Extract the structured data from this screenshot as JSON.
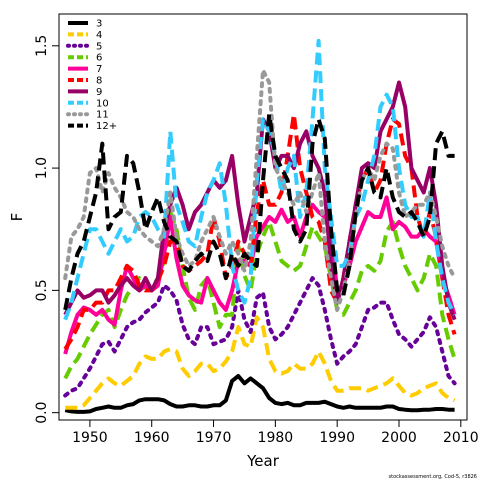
{
  "chart_data": {
    "type": "line",
    "xlabel": "Year",
    "ylabel": "F",
    "xlim": [
      1945,
      2011
    ],
    "ylim": [
      -0.03,
      1.63
    ],
    "x_ticks": [
      1950,
      1960,
      1970,
      1980,
      1990,
      2000,
      2010
    ],
    "y_ticks": [
      0.0,
      0.5,
      1.0,
      1.5
    ],
    "y_tick_labels": [
      "0.0",
      "0.5",
      "1.0",
      "1.5"
    ],
    "legend_position": "top-left",
    "x": [
      1946,
      1947,
      1948,
      1949,
      1950,
      1951,
      1952,
      1953,
      1954,
      1955,
      1956,
      1957,
      1958,
      1959,
      1960,
      1961,
      1962,
      1963,
      1964,
      1965,
      1966,
      1967,
      1968,
      1969,
      1970,
      1971,
      1972,
      1973,
      1974,
      1975,
      1976,
      1977,
      1978,
      1979,
      1980,
      1981,
      1982,
      1983,
      1984,
      1985,
      1986,
      1987,
      1988,
      1989,
      1990,
      1991,
      1992,
      1993,
      1994,
      1995,
      1996,
      1997,
      1998,
      1999,
      2000,
      2001,
      2002,
      2003,
      2004,
      2005,
      2006,
      2007,
      2008,
      2009
    ],
    "series": [
      {
        "name": "3",
        "color": "#000000",
        "dash": "solid",
        "values": [
          0.01,
          0.005,
          0.003,
          0.003,
          0.005,
          0.015,
          0.02,
          0.025,
          0.02,
          0.02,
          0.03,
          0.035,
          0.05,
          0.055,
          0.055,
          0.055,
          0.05,
          0.035,
          0.025,
          0.025,
          0.03,
          0.03,
          0.025,
          0.025,
          0.03,
          0.03,
          0.05,
          0.13,
          0.15,
          0.12,
          0.14,
          0.12,
          0.1,
          0.06,
          0.04,
          0.035,
          0.04,
          0.03,
          0.03,
          0.04,
          0.04,
          0.04,
          0.045,
          0.035,
          0.025,
          0.02,
          0.025,
          0.02,
          0.02,
          0.02,
          0.02,
          0.02,
          0.025,
          0.025,
          0.015,
          0.012,
          0.01,
          0.01,
          0.012,
          0.012,
          0.015,
          0.015,
          0.012,
          0.012
        ]
      },
      {
        "name": "4",
        "color": "#FFCC00",
        "dash": "dash",
        "values": [
          0.02,
          0.02,
          0.02,
          0.03,
          0.06,
          0.09,
          0.12,
          0.14,
          0.12,
          0.11,
          0.13,
          0.15,
          0.2,
          0.23,
          0.22,
          0.22,
          0.25,
          0.26,
          0.25,
          0.18,
          0.15,
          0.17,
          0.2,
          0.2,
          0.17,
          0.18,
          0.21,
          0.25,
          0.35,
          0.28,
          0.27,
          0.39,
          0.35,
          0.22,
          0.17,
          0.16,
          0.17,
          0.2,
          0.18,
          0.18,
          0.2,
          0.25,
          0.2,
          0.13,
          0.09,
          0.09,
          0.1,
          0.1,
          0.1,
          0.09,
          0.1,
          0.11,
          0.12,
          0.14,
          0.11,
          0.08,
          0.07,
          0.08,
          0.1,
          0.11,
          0.12,
          0.08,
          0.06,
          0.05
        ]
      },
      {
        "name": "5",
        "color": "#660099",
        "dash": "dot",
        "values": [
          0.07,
          0.09,
          0.1,
          0.14,
          0.18,
          0.23,
          0.28,
          0.29,
          0.25,
          0.3,
          0.35,
          0.37,
          0.38,
          0.41,
          0.43,
          0.45,
          0.52,
          0.5,
          0.46,
          0.36,
          0.3,
          0.28,
          0.35,
          0.35,
          0.28,
          0.29,
          0.3,
          0.35,
          0.5,
          0.38,
          0.33,
          0.47,
          0.49,
          0.35,
          0.3,
          0.32,
          0.35,
          0.4,
          0.45,
          0.5,
          0.55,
          0.52,
          0.42,
          0.3,
          0.2,
          0.23,
          0.25,
          0.28,
          0.35,
          0.42,
          0.43,
          0.45,
          0.45,
          0.38,
          0.32,
          0.3,
          0.27,
          0.3,
          0.33,
          0.39,
          0.35,
          0.25,
          0.15,
          0.12
        ]
      },
      {
        "name": "6",
        "color": "#66CC00",
        "dash": "dash",
        "values": [
          0.14,
          0.19,
          0.22,
          0.27,
          0.32,
          0.36,
          0.4,
          0.42,
          0.35,
          0.42,
          0.48,
          0.52,
          0.55,
          0.51,
          0.51,
          0.55,
          0.62,
          0.82,
          0.75,
          0.6,
          0.47,
          0.42,
          0.52,
          0.55,
          0.45,
          0.35,
          0.4,
          0.4,
          0.68,
          0.56,
          0.5,
          0.65,
          0.72,
          0.78,
          0.7,
          0.62,
          0.6,
          0.58,
          0.6,
          0.68,
          0.76,
          0.72,
          0.68,
          0.55,
          0.42,
          0.4,
          0.45,
          0.5,
          0.58,
          0.6,
          0.58,
          0.62,
          0.74,
          0.78,
          0.68,
          0.6,
          0.55,
          0.5,
          0.55,
          0.65,
          0.6,
          0.4,
          0.3,
          0.22
        ]
      },
      {
        "name": "7",
        "color": "#FF0099",
        "dash": "solid",
        "values": [
          0.24,
          0.33,
          0.4,
          0.43,
          0.42,
          0.4,
          0.42,
          0.38,
          0.36,
          0.5,
          0.6,
          0.55,
          0.5,
          0.52,
          0.5,
          0.52,
          0.65,
          0.8,
          0.63,
          0.52,
          0.48,
          0.46,
          0.45,
          0.55,
          0.5,
          0.45,
          0.42,
          0.5,
          0.62,
          0.62,
          0.6,
          0.72,
          0.76,
          0.8,
          0.78,
          0.83,
          0.78,
          0.8,
          0.72,
          0.8,
          0.85,
          0.82,
          0.8,
          0.72,
          0.5,
          0.52,
          0.6,
          0.7,
          0.76,
          0.82,
          0.8,
          0.8,
          0.88,
          0.75,
          0.78,
          0.76,
          0.72,
          0.72,
          0.75,
          0.72,
          0.7,
          0.55,
          0.48,
          0.4
        ]
      },
      {
        "name": "8",
        "color": "#FF0000",
        "dash": "dash",
        "values": [
          0.26,
          0.3,
          0.35,
          0.42,
          0.42,
          0.45,
          0.45,
          0.5,
          0.5,
          0.55,
          0.6,
          0.58,
          0.52,
          0.5,
          0.5,
          0.54,
          0.6,
          0.7,
          0.7,
          0.6,
          0.58,
          0.6,
          0.62,
          0.65,
          0.8,
          0.7,
          0.55,
          0.6,
          0.7,
          0.65,
          0.6,
          0.82,
          0.95,
          0.85,
          0.85,
          0.9,
          1.05,
          1.22,
          1.0,
          0.9,
          0.8,
          0.78,
          0.7,
          0.5,
          0.45,
          0.55,
          0.7,
          0.85,
          0.95,
          1.0,
          0.9,
          0.95,
          1.1,
          1.2,
          1.18,
          1.05,
          1.0,
          0.8,
          0.72,
          0.82,
          0.72,
          0.55,
          0.4,
          0.32
        ]
      },
      {
        "name": "9",
        "color": "#990066",
        "dash": "solid",
        "values": [
          0.4,
          0.45,
          0.5,
          0.47,
          0.48,
          0.5,
          0.5,
          0.45,
          0.48,
          0.52,
          0.55,
          0.52,
          0.5,
          0.55,
          0.5,
          0.55,
          0.75,
          0.85,
          0.92,
          0.85,
          0.75,
          0.82,
          0.85,
          0.9,
          0.95,
          0.92,
          0.95,
          1.05,
          0.85,
          0.7,
          0.8,
          0.9,
          1.2,
          1.15,
          1.0,
          1.05,
          1.05,
          1.0,
          1.1,
          1.15,
          1.05,
          1.0,
          0.9,
          0.6,
          0.45,
          0.55,
          0.7,
          0.85,
          1.0,
          1.02,
          1.0,
          1.15,
          1.2,
          1.25,
          1.35,
          1.25,
          1.0,
          0.95,
          0.9,
          1.0,
          0.85,
          0.6,
          0.45,
          0.38
        ]
      },
      {
        "name": "10",
        "color": "#33CCFF",
        "dash": "dash",
        "values": [
          0.38,
          0.45,
          0.55,
          0.65,
          0.75,
          0.75,
          0.7,
          0.65,
          0.7,
          0.75,
          0.7,
          0.72,
          0.8,
          0.82,
          0.8,
          0.75,
          0.72,
          1.15,
          0.85,
          0.78,
          0.7,
          0.68,
          0.8,
          0.9,
          0.95,
          1.02,
          0.85,
          0.6,
          0.5,
          0.45,
          0.55,
          0.95,
          1.2,
          1.15,
          1.05,
          0.9,
          1.0,
          1.05,
          0.8,
          0.9,
          1.2,
          1.52,
          1.0,
          0.8,
          0.6,
          0.6,
          0.65,
          0.8,
          0.85,
          0.95,
          1.05,
          1.25,
          1.3,
          1.25,
          1.0,
          0.85,
          0.8,
          0.8,
          0.72,
          0.9,
          0.7,
          0.55,
          0.45,
          0.4
        ]
      },
      {
        "name": "11",
        "color": "#999999",
        "dash": "dot",
        "values": [
          0.55,
          0.72,
          0.75,
          0.8,
          0.98,
          1.0,
          0.9,
          0.98,
          0.92,
          0.88,
          0.82,
          0.8,
          0.75,
          0.72,
          0.7,
          0.68,
          0.75,
          0.9,
          0.72,
          0.65,
          0.6,
          0.62,
          0.7,
          0.75,
          0.8,
          0.72,
          0.65,
          0.7,
          0.65,
          0.58,
          0.7,
          1.05,
          1.4,
          1.35,
          1.0,
          0.95,
          0.9,
          0.85,
          0.9,
          0.82,
          0.9,
          0.98,
          0.7,
          0.55,
          0.42,
          0.5,
          0.62,
          0.8,
          0.95,
          1.0,
          0.95,
          1.05,
          1.1,
          1.08,
          0.9,
          0.8,
          0.82,
          0.85,
          0.85,
          0.9,
          0.8,
          0.68,
          0.6,
          0.55
        ]
      },
      {
        "name": "12+",
        "color": "#000000",
        "dash": "dash",
        "values": [
          0.42,
          0.55,
          0.65,
          0.7,
          0.8,
          0.9,
          1.1,
          0.75,
          0.8,
          0.82,
          1.05,
          1.02,
          0.9,
          0.75,
          0.82,
          0.88,
          0.78,
          0.72,
          0.7,
          0.6,
          0.58,
          0.62,
          0.65,
          0.62,
          0.7,
          0.65,
          0.55,
          0.65,
          0.6,
          0.65,
          0.62,
          0.6,
          0.95,
          1.22,
          1.05,
          1.0,
          0.95,
          0.75,
          0.7,
          0.75,
          1.1,
          1.2,
          1.12,
          0.75,
          0.5,
          0.48,
          0.6,
          0.82,
          0.95,
          1.0,
          0.9,
          0.88,
          1.0,
          0.88,
          0.82,
          0.8,
          0.82,
          0.78,
          0.72,
          0.8,
          1.1,
          1.15,
          1.05,
          1.05
        ]
      }
    ],
    "credit": "stockassessment.org, Cod-5, r3826"
  }
}
